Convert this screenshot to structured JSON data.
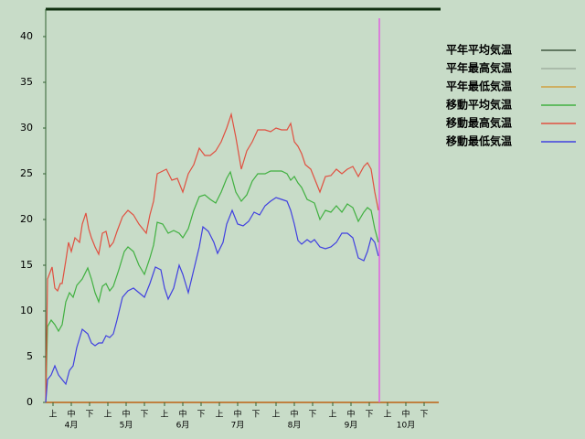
{
  "chart_data": {
    "type": "line",
    "xlim": [
      0,
      215
    ],
    "ylim": [
      0,
      43
    ],
    "yticks": [
      0,
      5,
      10,
      15,
      20,
      25,
      30,
      35,
      40
    ],
    "xticks": [
      {
        "value": 4,
        "label": "上"
      },
      {
        "value": 14,
        "label": "中"
      },
      {
        "value": 24,
        "label": "下"
      },
      {
        "value": 34,
        "label": "上"
      },
      {
        "value": 44,
        "label": "中"
      },
      {
        "value": 54,
        "label": "下"
      },
      {
        "value": 65,
        "label": "上"
      },
      {
        "value": 75,
        "label": "中"
      },
      {
        "value": 85,
        "label": "下"
      },
      {
        "value": 95,
        "label": "上"
      },
      {
        "value": 105,
        "label": "中"
      },
      {
        "value": 115,
        "label": "下"
      },
      {
        "value": 126,
        "label": "上"
      },
      {
        "value": 136,
        "label": "中"
      },
      {
        "value": 146,
        "label": "下"
      },
      {
        "value": 157,
        "label": "上"
      },
      {
        "value": 167,
        "label": "中"
      },
      {
        "value": 177,
        "label": "下"
      },
      {
        "value": 187,
        "label": "上"
      },
      {
        "value": 197,
        "label": "中"
      },
      {
        "value": 207,
        "label": "下"
      }
    ],
    "month_ticks": [
      {
        "value": 14,
        "label": "4月"
      },
      {
        "value": 44,
        "label": "5月"
      },
      {
        "value": 75,
        "label": "6月"
      },
      {
        "value": 105,
        "label": "7月"
      },
      {
        "value": 136,
        "label": "8月"
      },
      {
        "value": 167,
        "label": "9月"
      },
      {
        "value": 197,
        "label": "10月"
      }
    ],
    "today_line": {
      "value": 182.5,
      "color": "#e060e0"
    },
    "series": [
      {
        "name": "平年平均気温",
        "color": "#405840",
        "x": [],
        "values": []
      },
      {
        "name": "平年最高気温",
        "color": "#a0b0a0",
        "x": [],
        "values": []
      },
      {
        "name": "平年最低気温",
        "color": "#d0a040",
        "x": [],
        "values": []
      },
      {
        "name": "移動平均気温",
        "color": "#40b040",
        "x": [
          0,
          1,
          3,
          5,
          7,
          9,
          11,
          13,
          15,
          17,
          20,
          23,
          25,
          27,
          29,
          31,
          33,
          35,
          37,
          40,
          43,
          45,
          48,
          51,
          54,
          57,
          59,
          61,
          64,
          67,
          70,
          73,
          75,
          78,
          81,
          84,
          87,
          90,
          93,
          96,
          99,
          101,
          104,
          107,
          110,
          113,
          116,
          120,
          123,
          126,
          129,
          132,
          134,
          136,
          138,
          140,
          143,
          145,
          147,
          150,
          153,
          156,
          159,
          162,
          165,
          168,
          171,
          174,
          176,
          178,
          180,
          182
        ],
        "values": [
          0,
          8.3,
          9,
          8.5,
          7.8,
          8.5,
          11,
          12,
          11.5,
          12.8,
          13.5,
          14.7,
          13.5,
          12,
          11,
          12.7,
          13,
          12.2,
          12.7,
          14.5,
          16.5,
          17,
          16.5,
          15,
          14,
          15.8,
          17.2,
          19.7,
          19.5,
          18.5,
          18.8,
          18.5,
          18,
          19,
          21,
          22.5,
          22.7,
          22.2,
          21.8,
          23,
          24.5,
          25.2,
          23,
          22,
          22.7,
          24.2,
          25,
          25,
          25.3,
          25.3,
          25.3,
          25,
          24.3,
          24.7,
          24,
          23.5,
          22.2,
          22,
          21.8,
          20,
          21,
          20.8,
          21.5,
          20.8,
          21.7,
          21.3,
          19.8,
          20.8,
          21.3,
          21,
          19,
          17.5
        ]
      },
      {
        "name": "移動最高気温",
        "color": "#e05040",
        "x": [
          0,
          1,
          3.5,
          5,
          6.5,
          8,
          9,
          11,
          12.5,
          14,
          16,
          18.5,
          20,
          22,
          23.5,
          25,
          27,
          29,
          31,
          33,
          35,
          37,
          39,
          42,
          45,
          48,
          51,
          55,
          57,
          59,
          61,
          63,
          66,
          69,
          72,
          75,
          78,
          81,
          84,
          87,
          90,
          93,
          96,
          99,
          101.5,
          104,
          107,
          110,
          113,
          116,
          120,
          123,
          126,
          129,
          132,
          134,
          136,
          138,
          140,
          142,
          145,
          147,
          150,
          153,
          156,
          159,
          162,
          165,
          168,
          171,
          174,
          176,
          178,
          180,
          182
        ],
        "values": [
          0,
          13.5,
          14.8,
          12.5,
          12.2,
          13,
          13,
          15.5,
          17.5,
          16.5,
          18,
          17.5,
          19.5,
          20.7,
          19,
          18,
          17,
          16.2,
          18.5,
          18.7,
          17,
          17.5,
          18.7,
          20.3,
          21,
          20.5,
          19.5,
          18.5,
          20.5,
          22,
          25,
          25.2,
          25.5,
          24.3,
          24.5,
          23,
          25,
          26,
          27.8,
          27,
          27,
          27.5,
          28.5,
          30,
          31.5,
          29,
          25.5,
          27.5,
          28.5,
          29.8,
          29.8,
          29.6,
          30,
          29.8,
          29.8,
          30.5,
          28.5,
          28,
          27.2,
          26,
          25.5,
          24.5,
          23,
          24.7,
          24.8,
          25.5,
          25,
          25.5,
          25.8,
          24.7,
          25.8,
          26.2,
          25.5,
          23,
          21
        ]
      },
      {
        "name": "移動最低気温",
        "color": "#4040e0",
        "x": [
          0,
          1,
          3,
          5,
          7,
          9,
          11,
          13,
          15,
          17,
          20,
          23,
          25,
          27,
          29,
          31,
          33,
          35,
          37,
          39,
          42,
          45,
          48,
          51,
          54,
          57,
          60,
          63,
          65,
          67,
          70,
          73,
          75,
          78,
          81,
          84,
          86,
          89,
          92,
          94,
          97,
          99,
          102,
          105,
          108,
          111,
          114,
          117,
          120,
          123,
          126,
          129,
          132,
          134,
          136,
          138,
          140,
          143,
          145,
          147,
          150,
          153,
          156,
          159,
          162,
          165,
          168,
          171,
          174,
          176,
          178,
          180,
          182
        ],
        "values": [
          0,
          2.5,
          3,
          4,
          3,
          2.5,
          2,
          3.5,
          4,
          6,
          8,
          7.5,
          6.5,
          6.2,
          6.5,
          6.5,
          7.3,
          7.1,
          7.5,
          9,
          11.5,
          12.2,
          12.5,
          12,
          11.5,
          13,
          14.8,
          14.5,
          12.5,
          11.3,
          12.5,
          15,
          14,
          12,
          14.5,
          17,
          19.2,
          18.7,
          17.5,
          16.3,
          17.5,
          19.5,
          21,
          19.5,
          19.3,
          19.8,
          20.8,
          20.5,
          21.5,
          22,
          22.4,
          22.2,
          22,
          21,
          19.5,
          17.7,
          17.3,
          17.8,
          17.5,
          17.8,
          17,
          16.8,
          17,
          17.5,
          18.5,
          18.5,
          18,
          15.8,
          15.5,
          16.5,
          18,
          17.5,
          16
        ]
      }
    ]
  }
}
